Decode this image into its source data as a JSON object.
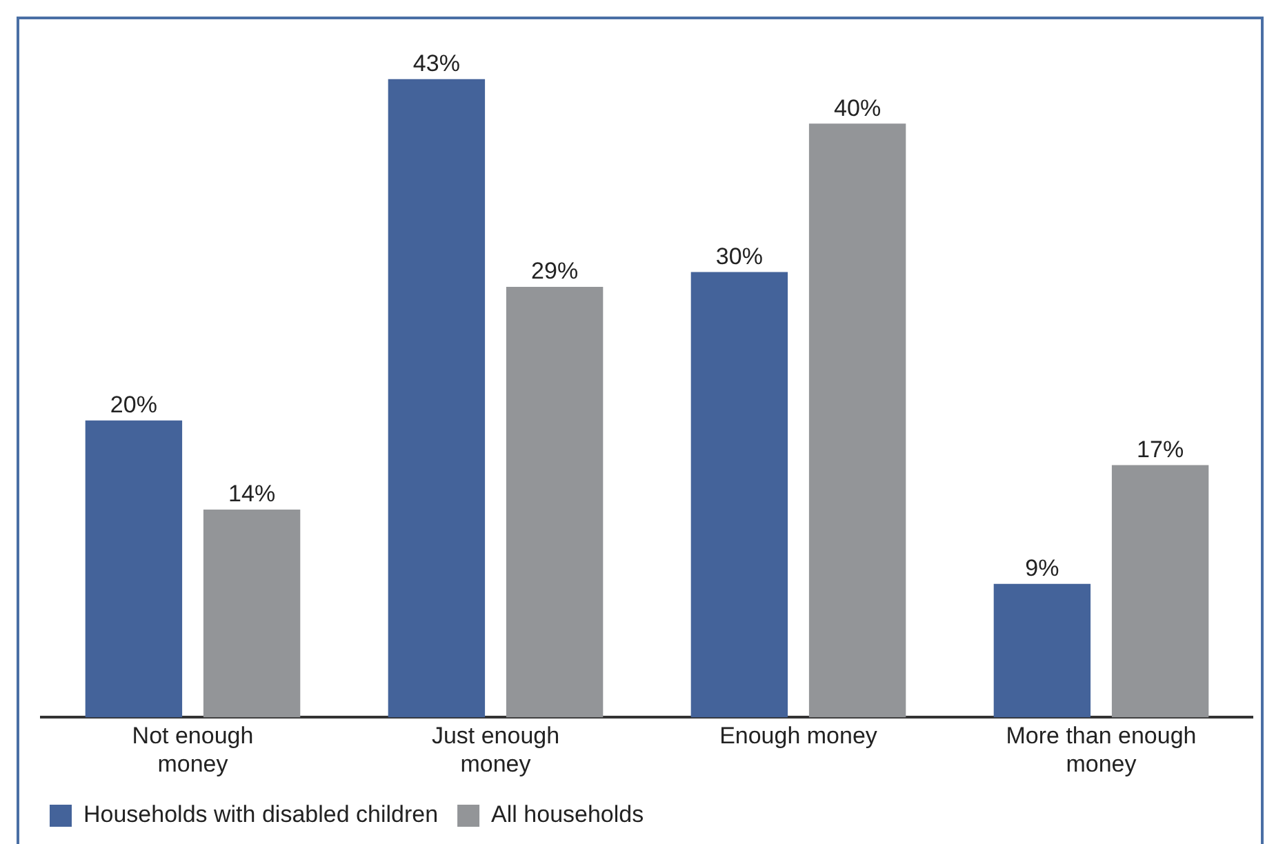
{
  "chart_data": {
    "type": "bar",
    "categories": [
      "Not enough money",
      "Just enough money",
      "Enough money",
      "More than enough money"
    ],
    "series": [
      {
        "name": "Households with disabled children",
        "color": "#44639a",
        "values": [
          20,
          43,
          30,
          9
        ],
        "value_labels": [
          "20%",
          "43%",
          "30%",
          "9%"
        ]
      },
      {
        "name": "All households",
        "color": "#939598",
        "values": [
          14,
          29,
          40,
          17
        ],
        "value_labels": [
          "14%",
          "29%",
          "40%",
          "17%"
        ]
      }
    ],
    "relative": false,
    "legend": "bottom left",
    "grid": false
  }
}
